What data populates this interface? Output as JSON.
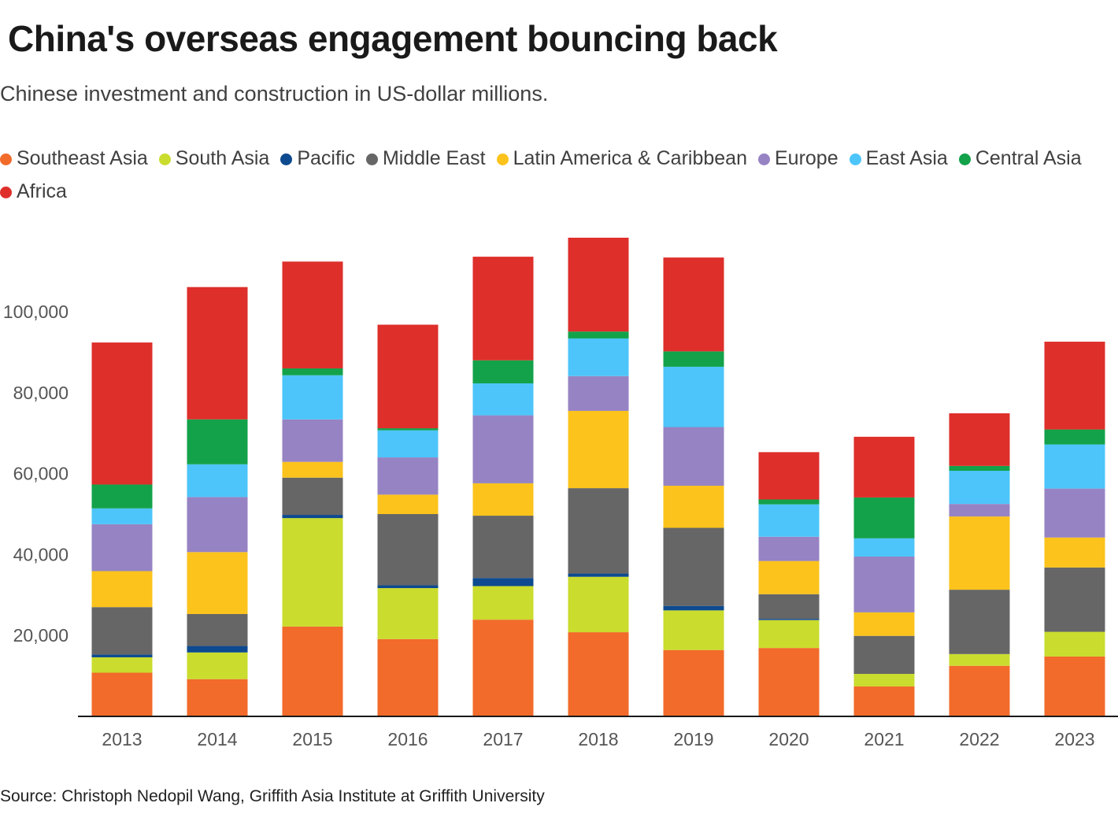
{
  "title": "China's overseas engagement bouncing back",
  "subtitle": "Chinese investment and construction in US-dollar millions.",
  "source": "Source: Christoph Nedopil Wang, Griffith Asia Institute at Griffith University",
  "chart_data": {
    "type": "bar",
    "stacked": true,
    "title": "China's overseas engagement bouncing back",
    "ylabel": "Chinese investment and construction in US-dollar millions",
    "ylim": [
      0,
      118000
    ],
    "yticks": [
      20000,
      40000,
      60000,
      80000,
      100000
    ],
    "ytick_labels": [
      "20,000",
      "40,000",
      "60,000",
      "80,000",
      "100,000"
    ],
    "gridlines": false,
    "legend_position": "top",
    "categories": [
      "2013",
      "2014",
      "2015",
      "2016",
      "2017",
      "2018",
      "2019",
      "2020",
      "2021",
      "2022",
      "2023"
    ],
    "series": [
      {
        "name": "Southeast Asia",
        "color": "#f26b2a",
        "values": [
          10800,
          9200,
          22200,
          19100,
          23900,
          20800,
          16400,
          16900,
          7400,
          12500,
          14800
        ]
      },
      {
        "name": "South Asia",
        "color": "#cadc2e",
        "values": [
          3800,
          6600,
          26800,
          12600,
          8300,
          13700,
          9800,
          6900,
          3100,
          2900,
          6100
        ]
      },
      {
        "name": "Pacific",
        "color": "#0d4a8f",
        "values": [
          700,
          1600,
          800,
          700,
          2000,
          800,
          1100,
          300,
          0,
          0,
          0
        ]
      },
      {
        "name": "Middle East",
        "color": "#666666",
        "values": [
          11700,
          7900,
          9200,
          17600,
          15400,
          21100,
          19300,
          6100,
          9400,
          15900,
          15900
        ]
      },
      {
        "name": "Latin America & Caribbean",
        "color": "#fbc31c",
        "values": [
          8900,
          15300,
          3900,
          4800,
          8000,
          19100,
          10400,
          8200,
          5800,
          18100,
          7400
        ]
      },
      {
        "name": "Europe",
        "color": "#9683c3",
        "values": [
          11600,
          13600,
          10500,
          9200,
          16800,
          8600,
          14500,
          6000,
          13800,
          3100,
          12100
        ]
      },
      {
        "name": "East Asia",
        "color": "#4dc5fa",
        "values": [
          3900,
          8100,
          10900,
          6700,
          7900,
          9300,
          14900,
          8000,
          4500,
          8200,
          10900
        ]
      },
      {
        "name": "Central Asia",
        "color": "#13a24a",
        "values": [
          5900,
          11100,
          1700,
          500,
          5700,
          1700,
          3800,
          1200,
          10100,
          1200,
          3700
        ]
      },
      {
        "name": "Africa",
        "color": "#de2f2b",
        "values": [
          35100,
          32700,
          26400,
          25600,
          25600,
          23200,
          23200,
          11700,
          15000,
          13000,
          21700
        ]
      }
    ]
  }
}
